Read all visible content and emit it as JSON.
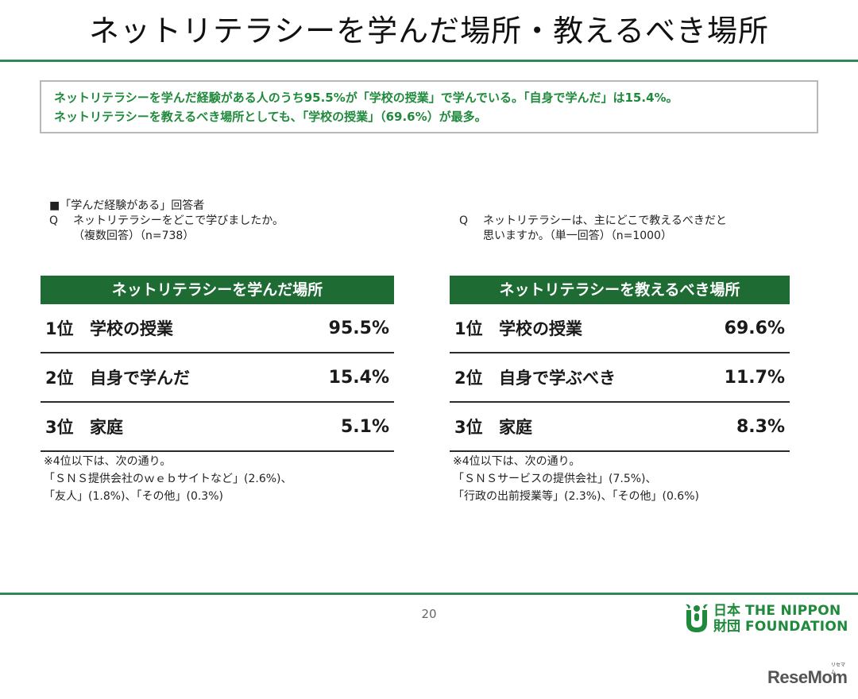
{
  "title": "ネットリテラシーを学んだ場所・教えるべき場所",
  "summary": {
    "line1": "ネットリテラシーを学んだ経験がある人のうち95.5%が「学校の授業」で学んでいる。「自身で学んだ」は15.4%。",
    "line2": "ネットリテラシーを教えるべき場所としても、「学校の授業」（69.6%）が最多。"
  },
  "left_question": {
    "respondents": "■「学んだ経験がある」回答者",
    "q_mark": "Q",
    "question": "ネットリテラシーをどこで学びましたか。",
    "detail": "（複数回答）（n=738）"
  },
  "right_question": {
    "q_mark": "Q",
    "question_line1": "ネットリテラシーは、主にどこで教えるべきだと",
    "question_line2": "思いますか。（単一回答）（n=1000）"
  },
  "left_table": {
    "header": "ネットリテラシーを学んだ場所",
    "rows": [
      {
        "rank": "1位",
        "label": "学校の授業",
        "value": "95.5%"
      },
      {
        "rank": "2位",
        "label": "自身で学んだ",
        "value": "15.4%"
      },
      {
        "rank": "3位",
        "label": "家庭",
        "value": "5.1%"
      }
    ],
    "note": [
      "※4位以下は、次の通り。",
      "「ＳＮＳ提供会社のｗｅｂサイトなど」(2.6%)、",
      "「友人」(1.8%)、「その他」(0.3%)"
    ]
  },
  "right_table": {
    "header": "ネットリテラシーを教えるべき場所",
    "rows": [
      {
        "rank": "1位",
        "label": "学校の授業",
        "value": "69.6%"
      },
      {
        "rank": "2位",
        "label": "自身で学ぶべき",
        "value": "11.7%"
      },
      {
        "rank": "3位",
        "label": "家庭",
        "value": "8.3%"
      }
    ],
    "note": [
      "※4位以下は、次の通り。",
      "「ＳＮＳサービスの提供会社」(7.5%)、",
      "「行政の出前授業等」(2.3%)、「その他」(0.6%)"
    ]
  },
  "page_number": "20",
  "logo": {
    "icon": "nippon-foundation-mark-icon",
    "kanji_line1": "日本",
    "kanji_line2": "財団",
    "text_line1": "THE NIPPON",
    "text_line2": "FOUNDATION"
  },
  "watermark": {
    "text": "ReseMom",
    "kana": "リセマム"
  },
  "colors": {
    "accent_green": "#1f8a3c",
    "table_header": "#1e6b34",
    "rule_green": "#2e8b57"
  }
}
